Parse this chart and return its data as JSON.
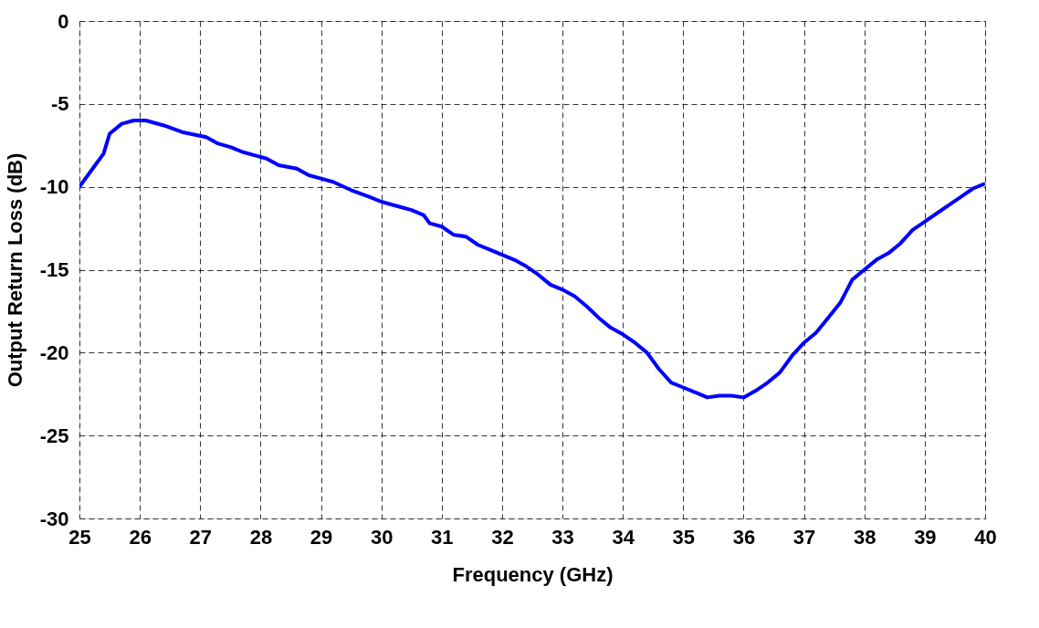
{
  "chart_data": {
    "type": "line",
    "xlabel": "Frequency (GHz)",
    "ylabel": "Output Return Loss (dB)",
    "xlim": [
      25,
      40
    ],
    "xticks": [
      25,
      26,
      27,
      28,
      29,
      30,
      31,
      32,
      33,
      34,
      35,
      36,
      37,
      38,
      39,
      40
    ],
    "ylim": [
      -30,
      0
    ],
    "yticks": [
      -30,
      -25,
      -20,
      -15,
      -10,
      -5,
      0
    ],
    "grid": true,
    "marker": "none",
    "line_style": "solid",
    "series": [
      {
        "color": "#0000ff",
        "x": [
          25.0,
          25.2,
          25.4,
          25.5,
          25.7,
          25.9,
          26.1,
          26.4,
          26.7,
          27.1,
          27.3,
          27.5,
          27.7,
          27.9,
          28.1,
          28.3,
          28.6,
          28.8,
          29.0,
          29.2,
          29.5,
          29.8,
          30.0,
          30.3,
          30.5,
          30.7,
          30.8,
          31.0,
          31.2,
          31.4,
          31.6,
          31.8,
          32.0,
          32.2,
          32.4,
          32.6,
          32.8,
          33.0,
          33.2,
          33.4,
          33.6,
          33.8,
          34.0,
          34.2,
          34.4,
          34.6,
          34.8,
          35.0,
          35.2,
          35.4,
          35.6,
          35.8,
          36.0,
          36.2,
          36.4,
          36.6,
          36.8,
          37.0,
          37.2,
          37.4,
          37.6,
          37.7,
          37.8,
          38.0,
          38.2,
          38.4,
          38.6,
          38.8,
          39.0,
          39.2,
          39.4,
          39.6,
          39.8,
          40.0
        ],
        "values": [
          -10.0,
          -9.0,
          -8.0,
          -6.8,
          -6.2,
          -6.0,
          -6.0,
          -6.3,
          -6.7,
          -7.0,
          -7.4,
          -7.6,
          -7.9,
          -8.1,
          -8.3,
          -8.7,
          -8.9,
          -9.3,
          -9.5,
          -9.7,
          -10.2,
          -10.6,
          -10.9,
          -11.2,
          -11.4,
          -11.7,
          -12.2,
          -12.4,
          -12.9,
          -13.0,
          -13.5,
          -13.8,
          -14.1,
          -14.4,
          -14.8,
          -15.3,
          -15.9,
          -16.2,
          -16.6,
          -17.2,
          -17.9,
          -18.5,
          -18.9,
          -19.4,
          -20.0,
          -21.0,
          -21.8,
          -22.1,
          -22.4,
          -22.7,
          -22.6,
          -22.6,
          -22.7,
          -22.3,
          -21.8,
          -21.2,
          -20.2,
          -19.4,
          -18.8,
          -17.9,
          -17.0,
          -16.3,
          -15.6,
          -15.0,
          -14.4,
          -14.0,
          -13.4,
          -12.6,
          -12.1,
          -11.6,
          -11.1,
          -10.6,
          -10.1,
          -9.8
        ]
      }
    ]
  }
}
